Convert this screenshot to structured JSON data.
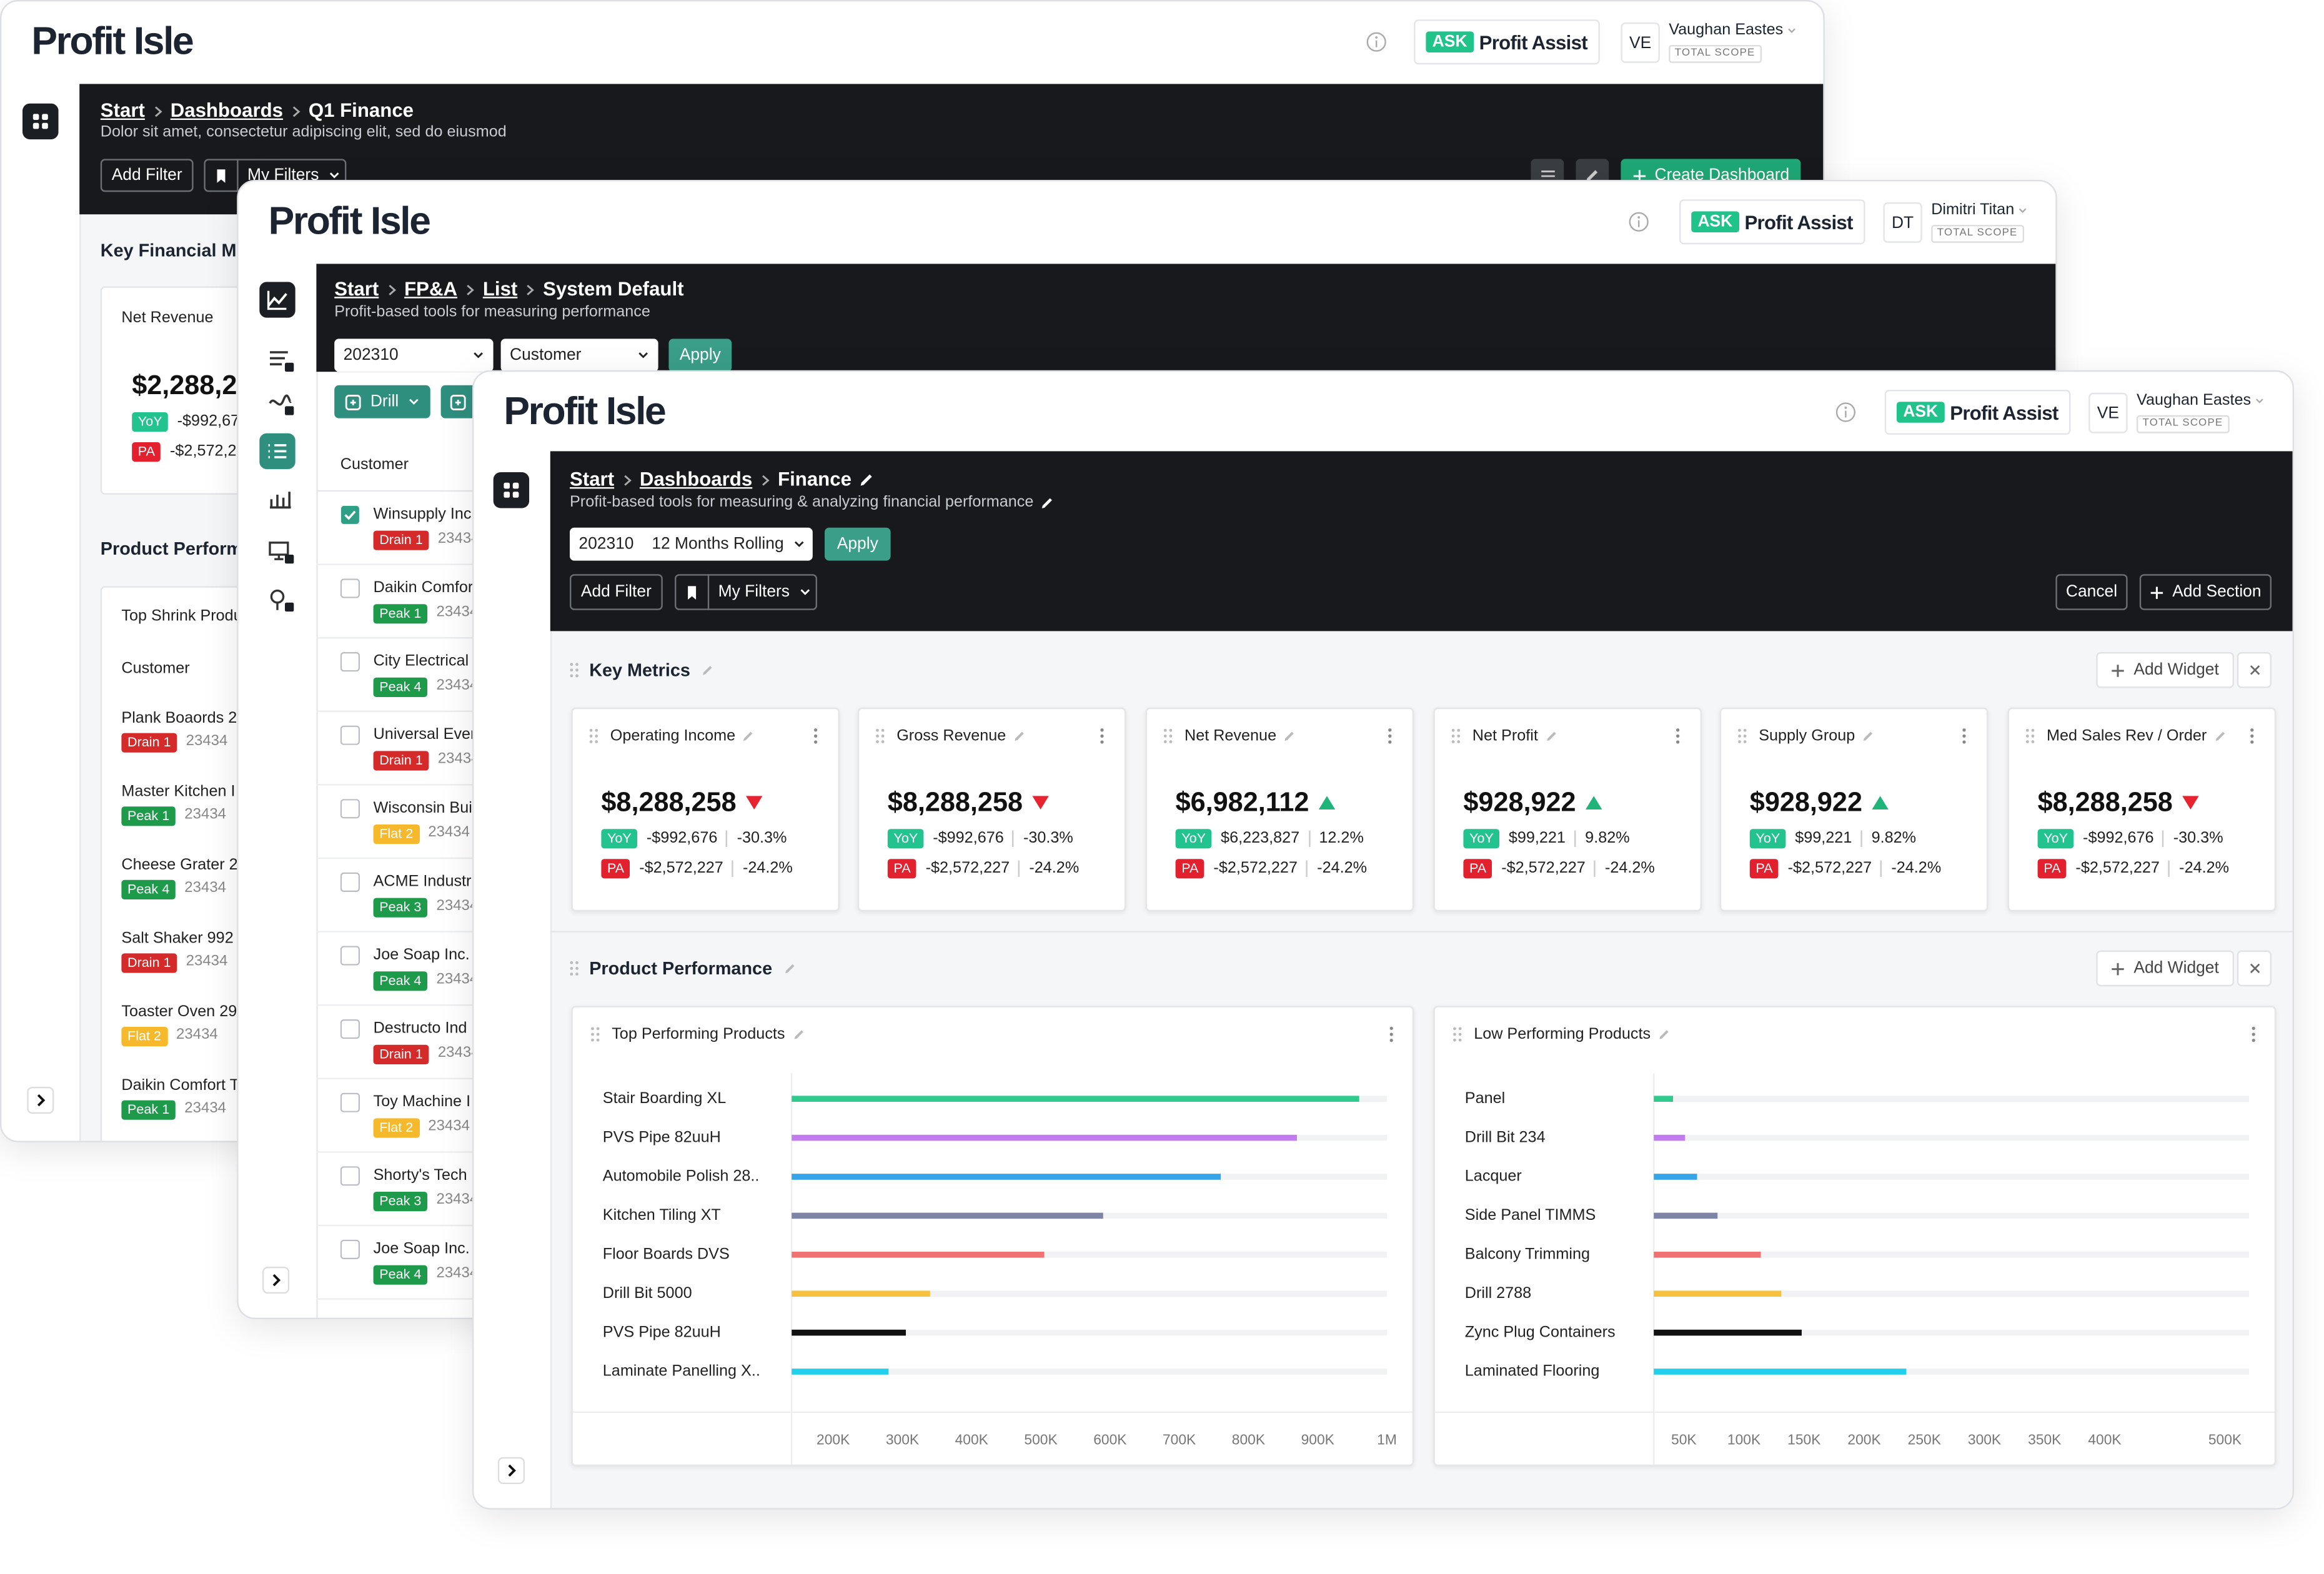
{
  "badge_colors": {
    "yoy": "#22c38e",
    "pa": "#e3202d"
  },
  "windows": [
    {
      "logo": "Profit Isle",
      "ask": "ASK",
      "assist": "Profit Assist",
      "initials": "VE",
      "user": "Vaughan Eastes",
      "scope": "TOTAL SCOPE",
      "breadcrumbs": [
        "Start",
        "Dashboards",
        "Q1 Finance"
      ],
      "subtitle": "Dolor sit amet, consectetur adipiscing elit, sed do eiusmod",
      "add_filter": "Add Filter",
      "my_filters": "My Filters",
      "create": "Create Dashboard",
      "section1": "Key Financial Me",
      "metric": {
        "title": "Net Revenue",
        "value": "$2,288,2",
        "yoy_badge": "YoY",
        "yoy": "-$992,67",
        "pa_badge": "PA",
        "pa": "-$2,572,2"
      },
      "section2": "Product Perform",
      "list": {
        "title": "Top Shrink Produ",
        "column": "Customer",
        "rows": [
          {
            "name": "Plank Boaords 2",
            "tag": "Drain 1",
            "tag_color": "#d42a2a",
            "id": "23434"
          },
          {
            "name": "Master Kitchen I",
            "tag": "Peak 1",
            "tag_color": "#1e9a4b",
            "id": "23434"
          },
          {
            "name": "Cheese Grater 2",
            "tag": "Peak 4",
            "tag_color": "#1e9a4b",
            "id": "23434"
          },
          {
            "name": "Salt Shaker 992",
            "tag": "Drain 1",
            "tag_color": "#d42a2a",
            "id": "23434"
          },
          {
            "name": "Toaster Oven 29",
            "tag": "Flat 2",
            "tag_color": "#f6b92b",
            "id": "23434"
          },
          {
            "name": "Daikin Comfort T",
            "tag": "Peak 1",
            "tag_color": "#1e9a4b",
            "id": "23434"
          }
        ]
      }
    },
    {
      "logo": "Profit Isle",
      "ask": "ASK",
      "assist": "Profit Assist",
      "initials": "DT",
      "user": "Dimitri Titan",
      "scope": "TOTAL SCOPE",
      "breadcrumbs": [
        "Start",
        "FP&A",
        "List",
        "System Default"
      ],
      "subtitle": "Profit-based tools for measuring performance",
      "period": "202310",
      "dimension": "Customer",
      "apply": "Apply",
      "drill": "Drill",
      "column": "Customer",
      "rows": [
        {
          "name": "Winsupply Inc",
          "tag": "Drain 1",
          "tag_color": "#d42a2a",
          "id": "23434",
          "checked": true
        },
        {
          "name": "Daikin Comfor",
          "tag": "Peak 1",
          "tag_color": "#1e9a4b",
          "id": "23434",
          "checked": false
        },
        {
          "name": "City Electrical",
          "tag": "Peak 4",
          "tag_color": "#1e9a4b",
          "id": "23434",
          "checked": false
        },
        {
          "name": "Universal Ever",
          "tag": "Drain 1",
          "tag_color": "#d42a2a",
          "id": "23434",
          "checked": false
        },
        {
          "name": "Wisconsin Bui",
          "tag": "Flat 2",
          "tag_color": "#f6b92b",
          "id": "23434",
          "checked": false
        },
        {
          "name": "ACME Industr",
          "tag": "Peak 3",
          "tag_color": "#1e9a4b",
          "id": "23434",
          "checked": false
        },
        {
          "name": "Joe Soap Inc.",
          "tag": "Peak 4",
          "tag_color": "#1e9a4b",
          "id": "23434",
          "checked": false
        },
        {
          "name": "Destructo Ind",
          "tag": "Drain 1",
          "tag_color": "#d42a2a",
          "id": "23434",
          "checked": false
        },
        {
          "name": "Toy Machine I",
          "tag": "Flat 2",
          "tag_color": "#f6b92b",
          "id": "23434",
          "checked": false
        },
        {
          "name": "Shorty's Tech",
          "tag": "Peak 3",
          "tag_color": "#1e9a4b",
          "id": "23434",
          "checked": false
        },
        {
          "name": "Joe Soap Inc.",
          "tag": "Peak 4",
          "tag_color": "#1e9a4b",
          "id": "23434",
          "checked": false
        }
      ]
    },
    {
      "logo": "Profit Isle",
      "ask": "ASK",
      "assist": "Profit Assist",
      "initials": "VE",
      "user": "Vaughan Eastes",
      "scope": "TOTAL SCOPE",
      "breadcrumbs": [
        "Start",
        "Dashboards",
        "Finance"
      ],
      "subtitle": "Profit-based tools for measuring & analyzing financial performance",
      "period": "202310",
      "range": "12 Months Rolling",
      "apply": "Apply",
      "add_filter": "Add Filter",
      "my_filters": "My Filters",
      "cancel": "Cancel",
      "add_section": "Add Section",
      "sections": [
        {
          "title": "Key Metrics",
          "add_widget": "Add Widget"
        },
        {
          "title": "Product Performance",
          "add_widget": "Add Widget"
        }
      ],
      "metrics": [
        {
          "title": "Operating Income",
          "value": "$8,288,258",
          "trend": "down",
          "yoy_badge": "YoY",
          "yoy": "-$992,676",
          "yoy_pct": "-30.3%",
          "pa_badge": "PA",
          "pa": "-$2,572,227",
          "pa_pct": "-24.2%"
        },
        {
          "title": "Gross Revenue",
          "value": "$8,288,258",
          "trend": "down",
          "yoy_badge": "YoY",
          "yoy": "-$992,676",
          "yoy_pct": "-30.3%",
          "pa_badge": "PA",
          "pa": "-$2,572,227",
          "pa_pct": "-24.2%"
        },
        {
          "title": "Net Revenue",
          "value": "$6,982,112",
          "trend": "up",
          "yoy_badge": "YoY",
          "yoy": "$6,223,827",
          "yoy_pct": "12.2%",
          "pa_badge": "PA",
          "pa": "-$2,572,227",
          "pa_pct": "-24.2%"
        },
        {
          "title": "Net Profit",
          "value": "$928,922",
          "trend": "up",
          "yoy_badge": "YoY",
          "yoy": "$99,221",
          "yoy_pct": "9.82%",
          "pa_badge": "PA",
          "pa": "-$2,572,227",
          "pa_pct": "-24.2%"
        },
        {
          "title": "Supply Group",
          "value": "$928,922",
          "trend": "up",
          "yoy_badge": "YoY",
          "yoy": "$99,221",
          "yoy_pct": "9.82%",
          "pa_badge": "PA",
          "pa": "-$2,572,227",
          "pa_pct": "-24.2%"
        },
        {
          "title": "Med Sales Rev / Order",
          "value": "$8,288,258",
          "trend": "down",
          "yoy_badge": "YoY",
          "yoy": "-$992,676",
          "yoy_pct": "-30.3%",
          "pa_badge": "PA",
          "pa": "-$2,572,227",
          "pa_pct": "-24.2%"
        }
      ],
      "charts": [
        {
          "type": "bar",
          "orientation": "horizontal",
          "title": "Top Performing Products",
          "categories": [
            "Stair Boarding XL",
            "PVS Pipe 82uuH",
            "Automobile Polish 28..",
            "Kitchen Tiling XT",
            "Floor Boards DVS",
            "Drill Bit 5000",
            "PVS Pipe 82uuH",
            "Laminate Panelling X.."
          ],
          "values": [
            960000,
            870000,
            760000,
            590000,
            505000,
            340000,
            305000,
            280000
          ],
          "colors": [
            "#2fcb8e",
            "#c27cf0",
            "#36a4e8",
            "#7d84a6",
            "#f07373",
            "#f6c23e",
            "#111111",
            "#23d0ec"
          ],
          "xlim": [
            140000,
            1000000
          ],
          "xticks": [
            {
              "value": 200000,
              "label": "200K"
            },
            {
              "value": 300000,
              "label": "300K"
            },
            {
              "value": 400000,
              "label": "400K"
            },
            {
              "value": 500000,
              "label": "500K"
            },
            {
              "value": 600000,
              "label": "600K"
            },
            {
              "value": 700000,
              "label": "700K"
            },
            {
              "value": 800000,
              "label": "800K"
            },
            {
              "value": 900000,
              "label": "900K"
            },
            {
              "value": 1000000,
              "label": "1M"
            }
          ]
        },
        {
          "type": "bar",
          "orientation": "horizontal",
          "title": "Low Performing Products",
          "categories": [
            "Panel",
            "Drill Bit 234",
            "Lacquer",
            "Side Panel TIMMS",
            "Balcony Trimming",
            "Drill 2788",
            "Zync Plug Containers",
            "Laminated Flooring"
          ],
          "values": [
            41000,
            51000,
            61000,
            78000,
            114000,
            131000,
            148000,
            235000
          ],
          "colors": [
            "#2fcb8e",
            "#c27cf0",
            "#36a4e8",
            "#7d84a6",
            "#f07373",
            "#f6c23e",
            "#111111",
            "#23d0ec"
          ],
          "xlim": [
            25000,
            520000
          ],
          "xticks": [
            {
              "value": 50000,
              "label": "50K"
            },
            {
              "value": 100000,
              "label": "100K"
            },
            {
              "value": 150000,
              "label": "150K"
            },
            {
              "value": 200000,
              "label": "200K"
            },
            {
              "value": 250000,
              "label": "250K"
            },
            {
              "value": 300000,
              "label": "300K"
            },
            {
              "value": 350000,
              "label": "350K"
            },
            {
              "value": 400000,
              "label": "400K"
            },
            {
              "value": 500000,
              "label": "500K"
            }
          ]
        }
      ]
    }
  ]
}
